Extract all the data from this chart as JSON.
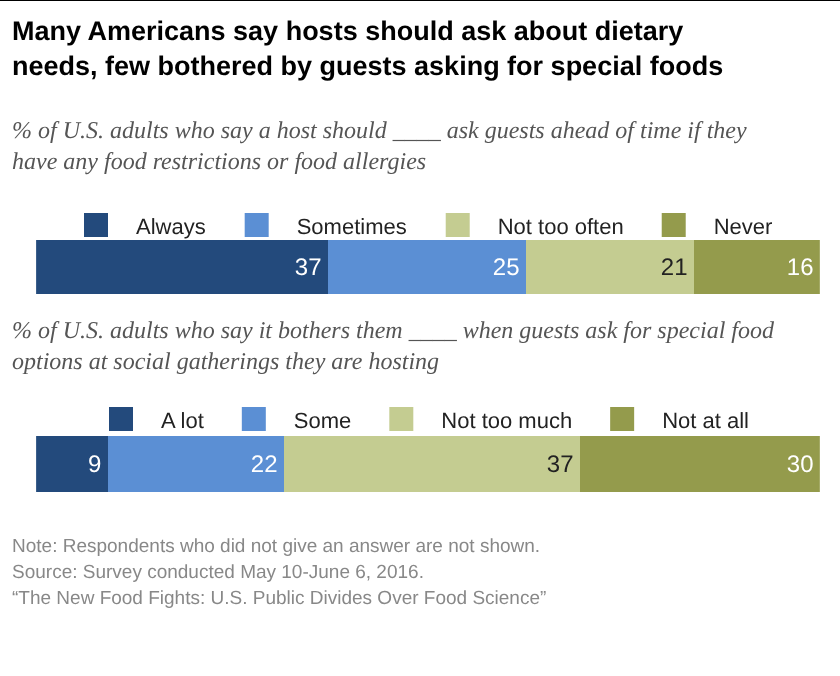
{
  "chart_data": [
    {
      "type": "bar",
      "orientation": "horizontal",
      "stacked": true,
      "title": "Many Americans say hosts should ask about dietary needs, few bothered by guests asking for special foods",
      "subtitle": "% of U.S. adults who say a host should ____ ask guests ahead of time if they have any food restrictions or food allergies",
      "categories": [
        null
      ],
      "legend": "top",
      "tick_labels": false,
      "data_labels": true,
      "series": [
        {
          "name": "Always",
          "color": "#234a7c",
          "values": [
            37
          ]
        },
        {
          "name": "Sometimes",
          "color": "#5b8fd4",
          "values": [
            25
          ]
        },
        {
          "name": "Not too often",
          "color": "#c4cc91",
          "values": [
            21
          ]
        },
        {
          "name": "Never",
          "color": "#949b4c",
          "values": [
            16
          ]
        }
      ]
    },
    {
      "type": "bar",
      "orientation": "horizontal",
      "stacked": true,
      "subtitle": "% of U.S. adults who say it bothers them ____ when guests ask for special food options at social gatherings they are hosting",
      "categories": [
        null
      ],
      "legend": "top",
      "tick_labels": false,
      "data_labels": true,
      "annotations": [
        "Note: Respondents who did not give an answer are not shown.",
        "Source: Survey conducted May 10-June 6, 2016.",
        "“The New Food Fights: U.S. Public Divides Over Food Science”"
      ],
      "series": [
        {
          "name": "A lot",
          "color": "#234a7c",
          "values": [
            9
          ]
        },
        {
          "name": "Some",
          "color": "#5b8fd4",
          "values": [
            22
          ]
        },
        {
          "name": "Not too much",
          "color": "#c4cc91",
          "values": [
            37
          ]
        },
        {
          "name": "Not at all",
          "color": "#949b4c",
          "values": [
            30
          ]
        }
      ]
    }
  ]
}
